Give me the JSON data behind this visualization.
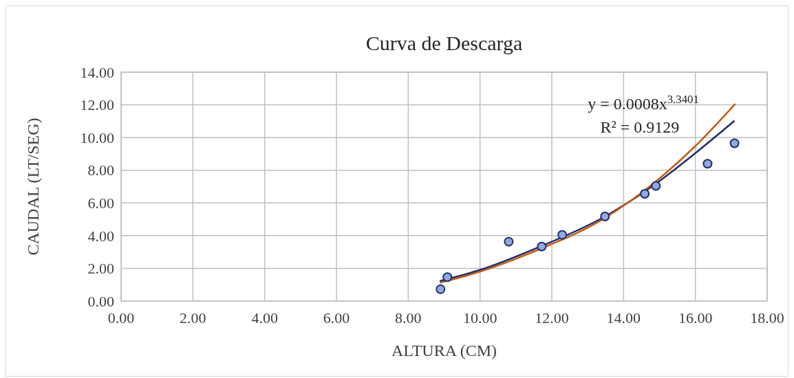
{
  "chart_data": {
    "type": "scatter",
    "title": "Curva de Descarga",
    "xlabel": "ALTURA (CM)",
    "ylabel": "CAUDAL (LT/SEG)",
    "annotations": [
      "y = 0.0008x$^{3.3401}$",
      "R² = 0.9129"
    ],
    "series": [
      {
        "color": "#8faadc",
        "x": [
          8.9,
          9.09,
          10.8,
          11.72,
          12.29,
          13.48,
          14.59,
          14.9,
          16.34,
          17.09
        ],
        "values": [
          0.72,
          1.46,
          3.63,
          3.33,
          4.05,
          5.17,
          6.56,
          7.04,
          8.4,
          9.65
        ],
        "marker": "circle"
      },
      {
        "type": "line",
        "color": "#1f2a6b",
        "x": [
          8.88,
          10.0,
          11.58,
          13.48,
          14.9,
          16.0,
          17.09
        ],
        "values": [
          1.22,
          1.9,
          3.24,
          5.17,
          7.18,
          9.05,
          11.03
        ]
      },
      {
        "type": "line",
        "color": "#c55a11",
        "x": [
          8.88,
          10.0,
          11.58,
          13.48,
          14.9,
          16.0,
          17.11
        ],
        "values": [
          1.12,
          1.8,
          3.1,
          5.08,
          7.32,
          9.48,
          12.06
        ]
      }
    ],
    "xlim": [
      0,
      18
    ],
    "xticks": [
      {
        "value": 0,
        "label": "0.00"
      },
      {
        "value": 2,
        "label": "2.00"
      },
      {
        "value": 4,
        "label": "4.00"
      },
      {
        "value": 6,
        "label": "6.00"
      },
      {
        "value": 8,
        "label": "8.00"
      },
      {
        "value": 10,
        "label": "10.00"
      },
      {
        "value": 12,
        "label": "12.00"
      },
      {
        "value": 14,
        "label": "14.00"
      },
      {
        "value": 16,
        "label": "16.00"
      },
      {
        "value": 18,
        "label": "18.00"
      }
    ],
    "ylim": [
      0,
      14
    ],
    "yticks": [
      {
        "value": 0,
        "label": "0.00"
      },
      {
        "value": 2,
        "label": "2.00"
      },
      {
        "value": 4,
        "label": "4.00"
      },
      {
        "value": 6,
        "label": "6.00"
      },
      {
        "value": 8,
        "label": "8.00"
      },
      {
        "value": 10,
        "label": "10.00"
      },
      {
        "value": 12,
        "label": "12.00"
      },
      {
        "value": 14,
        "label": "14.00"
      }
    ],
    "grid": true
  }
}
